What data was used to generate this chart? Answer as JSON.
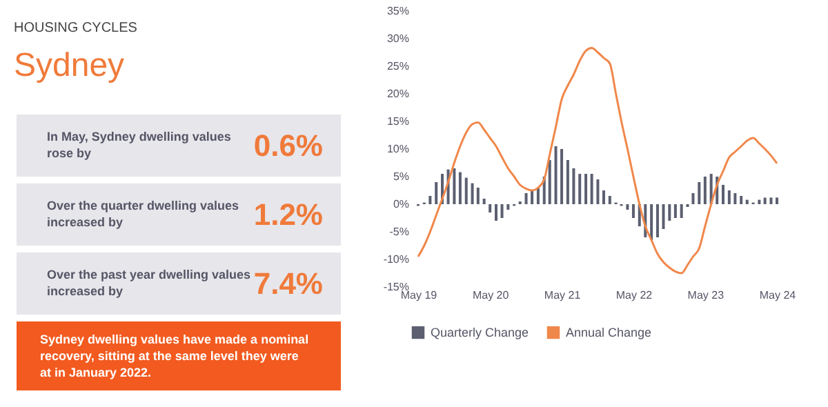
{
  "chart_data": [
    {
      "type": "other",
      "subtitle": "HOUSING CYCLES",
      "title": "Sydney",
      "annotations": [
        "In May, Sydney dwelling values rose by",
        "0.6%",
        "Over the quarter dwelling values increased by",
        "1.2%",
        "Over the past year dwelling values increased by",
        "7.4%",
        "Sydney dwelling values have made a nominal recovery, sitting at the same level they were at in January 2022."
      ],
      "color": "#f07a3a",
      "colors": [
        "#e6e6eb",
        "#f25a1f"
      ]
    },
    {
      "type": "bar",
      "legend": "bottom",
      "x": [
        "2019-05",
        "2019-06",
        "2019-07",
        "2019-08",
        "2019-09",
        "2019-10",
        "2019-11",
        "2019-12",
        "2020-01",
        "2020-02",
        "2020-03",
        "2020-04",
        "2020-05",
        "2020-06",
        "2020-07",
        "2020-08",
        "2020-09",
        "2020-10",
        "2020-11",
        "2020-12",
        "2021-01",
        "2021-02",
        "2021-03",
        "2021-04",
        "2021-05",
        "2021-06",
        "2021-07",
        "2021-08",
        "2021-09",
        "2021-10",
        "2021-11",
        "2021-12",
        "2022-01",
        "2022-02",
        "2022-03",
        "2022-04",
        "2022-05",
        "2022-06",
        "2022-07",
        "2022-08",
        "2022-09",
        "2022-10",
        "2022-11",
        "2022-12",
        "2023-01",
        "2023-02",
        "2023-03",
        "2023-04",
        "2023-05",
        "2023-06",
        "2023-07",
        "2023-08",
        "2023-09",
        "2023-10",
        "2023-11",
        "2023-12",
        "2024-01",
        "2024-02",
        "2024-03",
        "2024-04",
        "2024-05"
      ],
      "xlim": [
        "2019-05",
        "2024-05"
      ],
      "xticks": [
        {
          "value": "2019-05",
          "label": "May 19"
        },
        {
          "value": "2020-05",
          "label": "May 20"
        },
        {
          "value": "2021-05",
          "label": "May 21"
        },
        {
          "value": "2022-05",
          "label": "May 22"
        },
        {
          "value": "2023-05",
          "label": "May 23"
        },
        {
          "value": "2024-05",
          "label": "May 24"
        }
      ],
      "ylim": [
        -15,
        35
      ],
      "yticks": [
        {
          "value": -15,
          "label": "-15%"
        },
        {
          "value": -10,
          "label": "-10%"
        },
        {
          "value": -5,
          "label": "-5%"
        },
        {
          "value": 0,
          "label": "0%"
        },
        {
          "value": 5,
          "label": "5%"
        },
        {
          "value": 10,
          "label": "10%"
        },
        {
          "value": 15,
          "label": "15%"
        },
        {
          "value": 20,
          "label": "20%"
        },
        {
          "value": 25,
          "label": "25%"
        },
        {
          "value": 30,
          "label": "30%"
        },
        {
          "value": 35,
          "label": "35%"
        }
      ],
      "series": [
        {
          "name": "Quarterly Change",
          "type": "bar",
          "color": "#5b5f70",
          "values": [
            -0.3,
            0.3,
            1.5,
            4,
            5.5,
            6.3,
            6.5,
            5.8,
            4.8,
            3.8,
            3,
            1,
            -1.5,
            -3,
            -2.5,
            -1,
            -0.3,
            0.5,
            2,
            2.5,
            3,
            5,
            8,
            10.5,
            10,
            8,
            6.5,
            5.5,
            5.5,
            5.5,
            4.5,
            2.5,
            1.5,
            0.3,
            -0.3,
            -1,
            -2.5,
            -4,
            -6,
            -6.5,
            -6,
            -4.5,
            -3,
            -2.5,
            -2.5,
            -0.5,
            2,
            4,
            5,
            5.5,
            5,
            3.5,
            2.5,
            2,
            1.5,
            0.8,
            0.3,
            0.8,
            1.2,
            1.2,
            1.2
          ]
        },
        {
          "name": "Annual Change",
          "type": "line",
          "color": "#f0874a",
          "values": [
            -9.5,
            -7.5,
            -5,
            -2,
            1,
            4,
            7.5,
            10.5,
            13,
            14.5,
            14.8,
            13.5,
            12,
            10.5,
            8.5,
            6.5,
            5,
            3.5,
            2.8,
            2.5,
            3,
            4.5,
            9,
            14,
            19,
            21.5,
            23.5,
            26,
            27.8,
            28.3,
            27.5,
            26.5,
            25.5,
            20,
            15,
            10,
            5,
            0,
            -4,
            -6.5,
            -9,
            -10.5,
            -11.5,
            -12.2,
            -12.5,
            -11,
            -9.5,
            -8,
            -4,
            0,
            3.5,
            6,
            8.5,
            9.5,
            10.5,
            11.5,
            12,
            11,
            10,
            8.8,
            7.4
          ]
        }
      ]
    }
  ]
}
